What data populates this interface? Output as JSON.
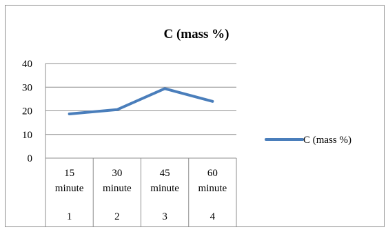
{
  "chart_data": {
    "type": "line",
    "title": "C (mass %)",
    "categories": [
      {
        "top": "15",
        "mid": "minute",
        "bottom": "1"
      },
      {
        "top": "30",
        "mid": "minute",
        "bottom": "2"
      },
      {
        "top": "45",
        "mid": "minute",
        "bottom": "3"
      },
      {
        "top": "60",
        "mid": "minute",
        "bottom": "4"
      }
    ],
    "series": [
      {
        "name": "C (mass %)",
        "values": [
          18.7,
          20.5,
          29.4,
          24.0
        ],
        "color": "#4a7ebb"
      }
    ],
    "yticks": [
      "0",
      "10",
      "20",
      "30",
      "40"
    ],
    "ylim": [
      0,
      40
    ],
    "grid": true,
    "legend": "right"
  }
}
